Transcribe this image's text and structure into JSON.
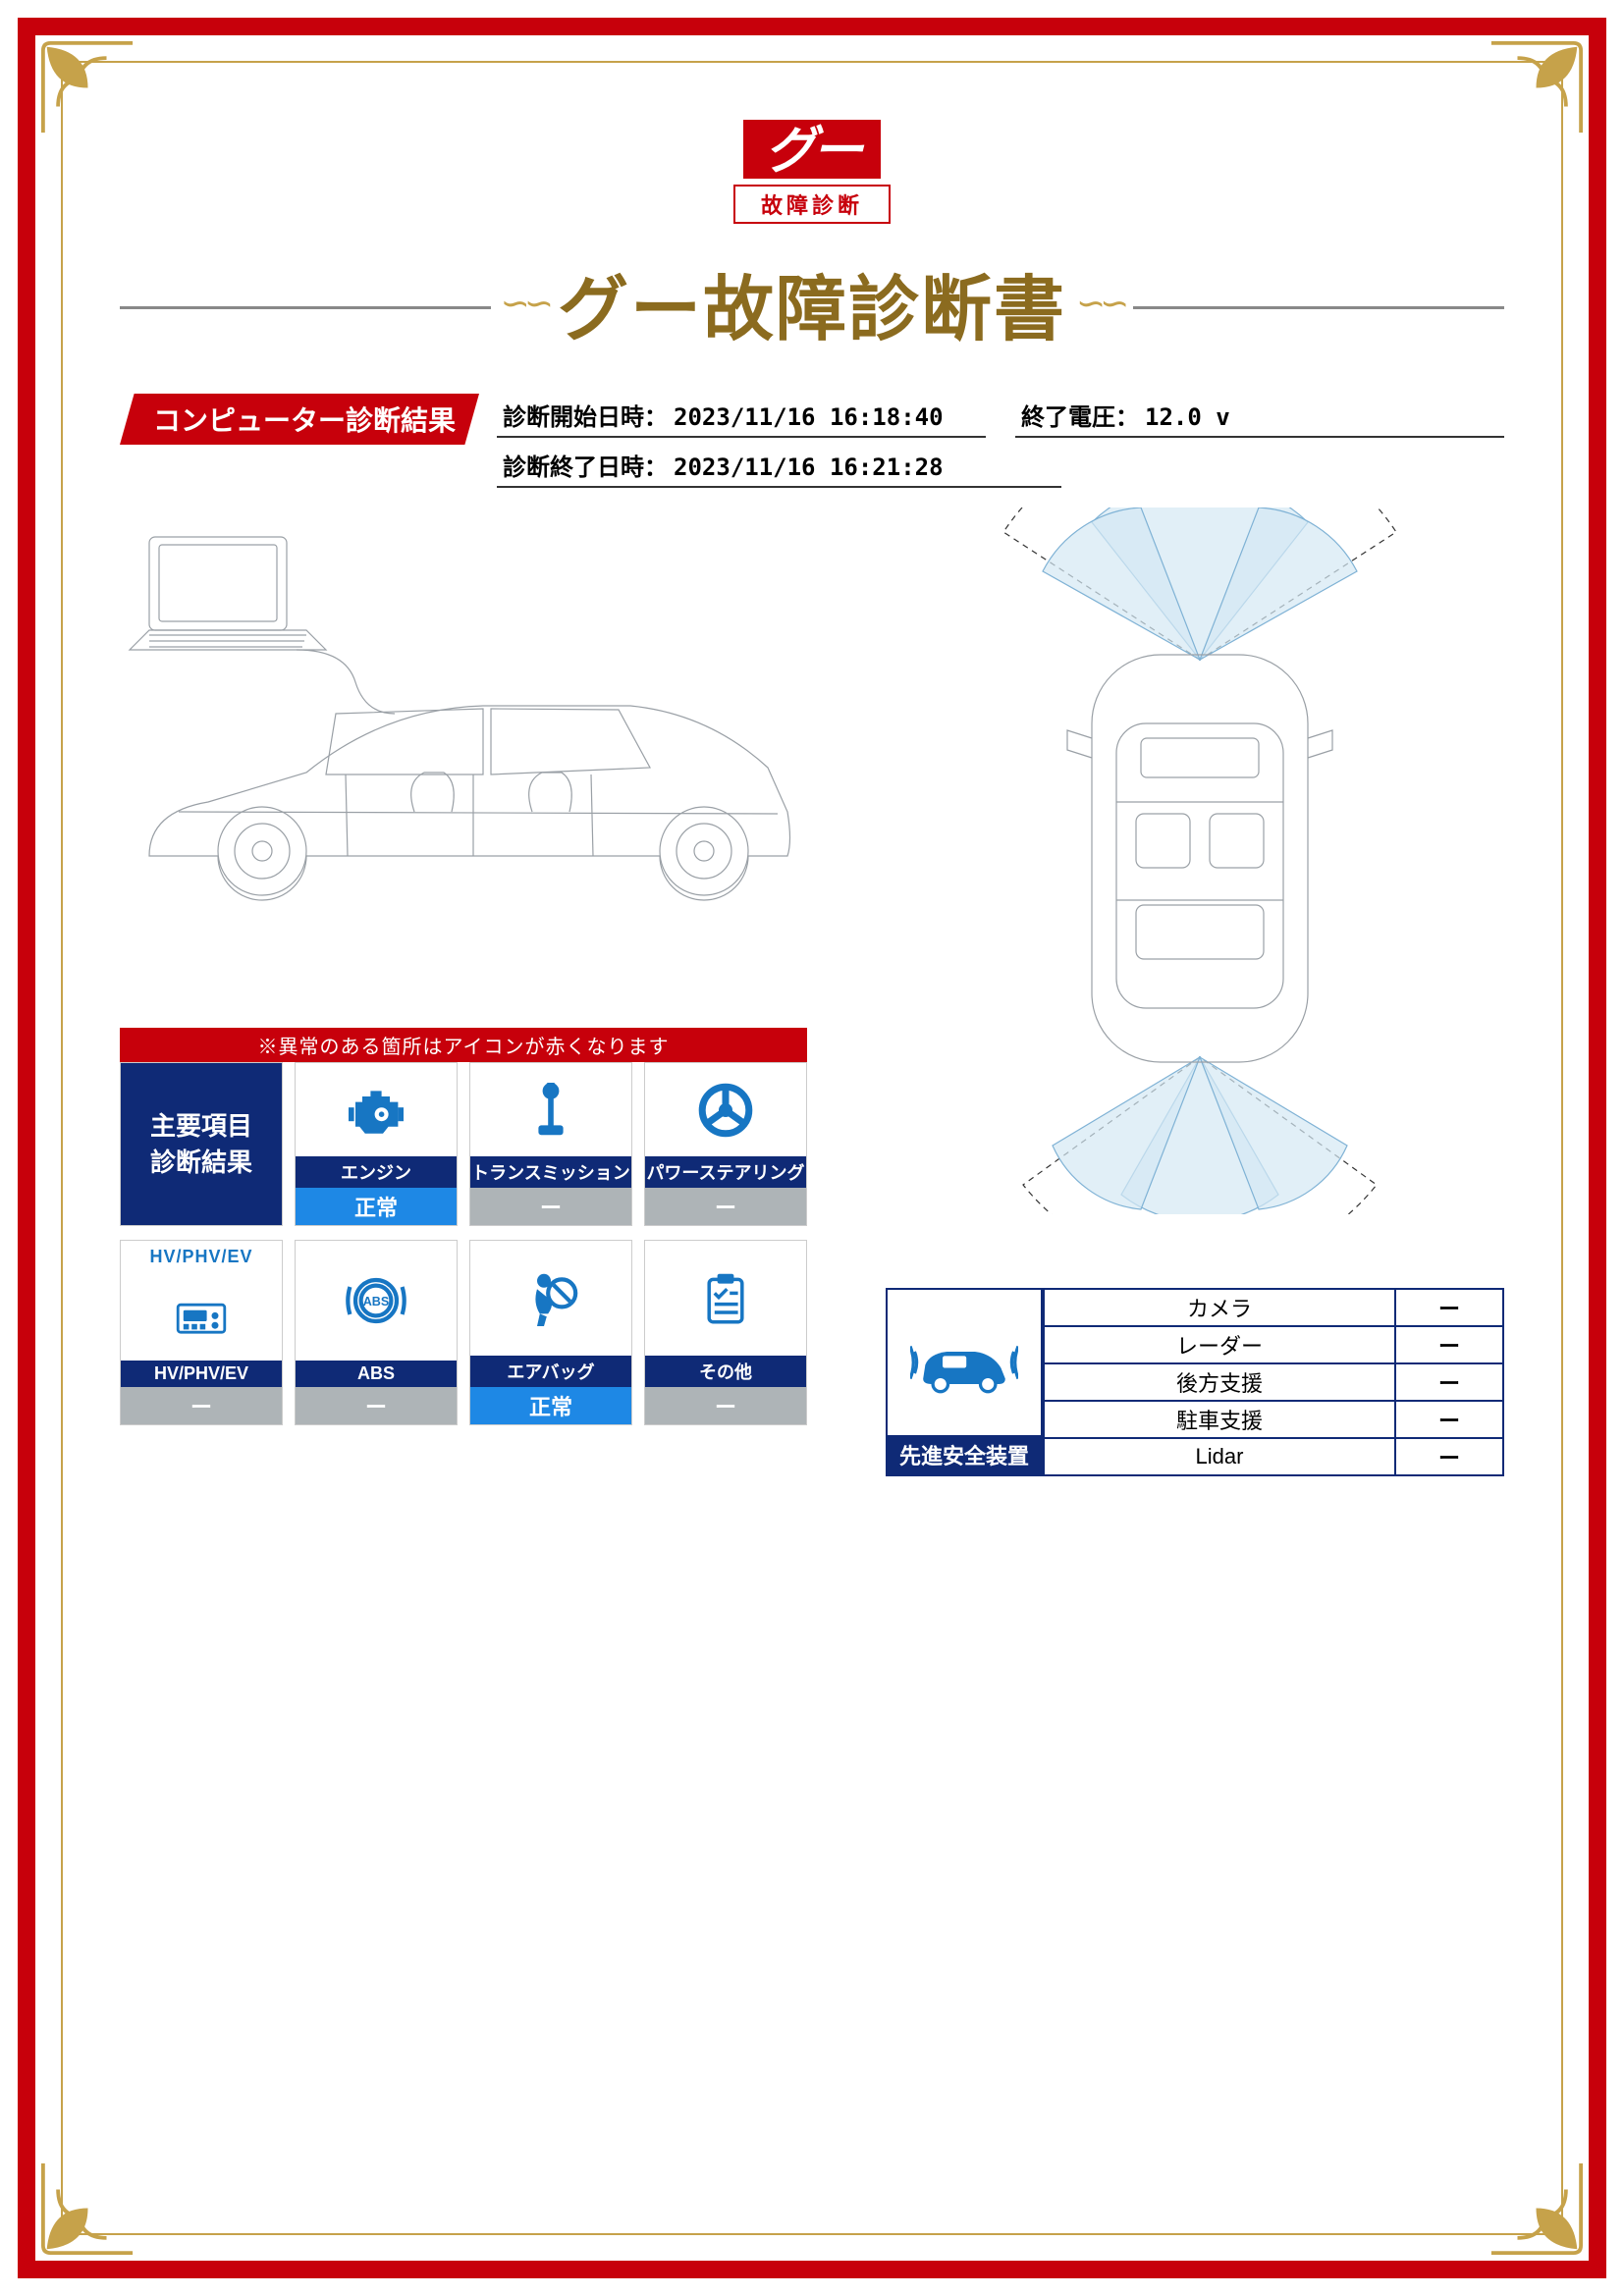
{
  "colors": {
    "red": "#c7000b",
    "navy": "#0f2a76",
    "gold": "#c6a24a",
    "gold_dark": "#8b6b1f",
    "blue_icon": "#1776c3",
    "status_blue": "#1e88e5",
    "status_gray": "#aeb4b7",
    "sensor_fill": "#d4e8f4"
  },
  "logo": {
    "text": "グー",
    "sub": "故障診断"
  },
  "title": "グー故障診断書",
  "section": "コンピューター診断結果",
  "dates": {
    "start_label": "診断開始日時：",
    "start_value": "2023/11/16 16:18:40",
    "voltage_label": "終了電圧：",
    "voltage_value": "12.0 v",
    "end_label": "診断終了日時：",
    "end_value": "2023/11/16 16:21:28"
  },
  "icons_header_note": "※異常のある箇所はアイコンが赤くなります",
  "main_title_card": "主要項目\n診断結果",
  "items": [
    {
      "key": "engine",
      "name": "エンジン",
      "status": "正常",
      "status_kind": "ok"
    },
    {
      "key": "trans",
      "name": "トランスミッション",
      "status": "ー",
      "status_kind": "na"
    },
    {
      "key": "power",
      "name": "パワーステアリング",
      "status": "ー",
      "status_kind": "na"
    },
    {
      "key": "hv",
      "name": "HV/PHV/EV",
      "status": "ー",
      "status_kind": "na",
      "top_label": "HV/PHV/EV"
    },
    {
      "key": "abs",
      "name": "ABS",
      "status": "ー",
      "status_kind": "na"
    },
    {
      "key": "airbag",
      "name": "エアバッグ",
      "status": "正常",
      "status_kind": "ok"
    },
    {
      "key": "other",
      "name": "その他",
      "status": "ー",
      "status_kind": "na"
    }
  ],
  "safety": {
    "title": "先進安全装置",
    "rows": [
      {
        "label": "カメラ",
        "value": "ー"
      },
      {
        "label": "レーダー",
        "value": "ー"
      },
      {
        "label": "後方支援",
        "value": "ー"
      },
      {
        "label": "駐車支援",
        "value": "ー"
      },
      {
        "label": "Lidar",
        "value": "ー"
      }
    ]
  }
}
